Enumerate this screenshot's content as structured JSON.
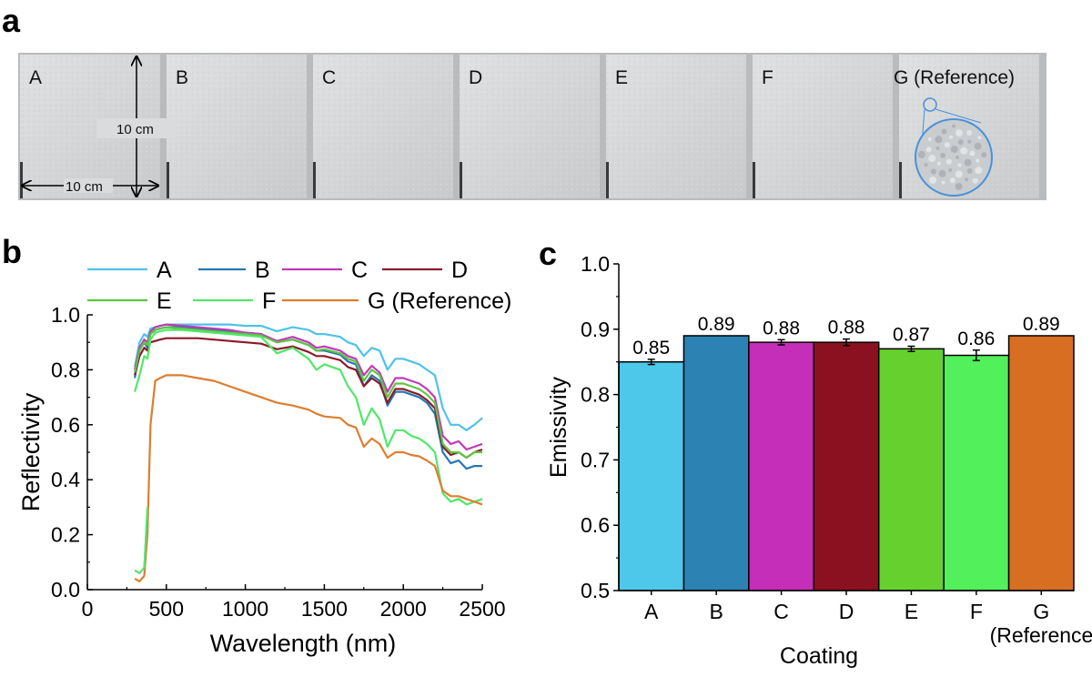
{
  "panels": {
    "a": "a",
    "b": "b",
    "c": "c"
  },
  "samples": {
    "labels": [
      "A",
      "B",
      "C",
      "D",
      "E",
      "F",
      "G (Reference)"
    ],
    "dim_vertical": "10 cm",
    "dim_horizontal": "10 cm",
    "colors": {
      "tile": "#d6d8d9",
      "tile_dark": "#c8cacb",
      "zoom_circle": "#4a90d9"
    }
  },
  "chart_data": [
    {
      "type": "line",
      "xlabel": "Wavelength (nm)",
      "ylabel": "Reflectivity",
      "xlim": [
        0,
        2500
      ],
      "ylim": [
        0.0,
        1.0
      ],
      "xticks": [
        0,
        500,
        1000,
        1500,
        2000,
        2500
      ],
      "yticks": [
        0.0,
        0.2,
        0.4,
        0.6,
        0.8,
        1.0
      ],
      "legend_position": "top",
      "series": [
        {
          "name": "A",
          "color": "#4dc3e8",
          "x": [
            300,
            330,
            360,
            380,
            400,
            430,
            460,
            500,
            600,
            700,
            800,
            900,
            1000,
            1100,
            1200,
            1300,
            1400,
            1450,
            1500,
            1600,
            1650,
            1700,
            1750,
            1800,
            1850,
            1900,
            1950,
            2000,
            2050,
            2100,
            2150,
            2200,
            2250,
            2300,
            2350,
            2400,
            2450,
            2500
          ],
          "y": [
            0.81,
            0.9,
            0.93,
            0.92,
            0.95,
            0.955,
            0.96,
            0.965,
            0.965,
            0.965,
            0.965,
            0.965,
            0.96,
            0.96,
            0.94,
            0.955,
            0.945,
            0.93,
            0.93,
            0.92,
            0.9,
            0.89,
            0.85,
            0.88,
            0.87,
            0.8,
            0.84,
            0.84,
            0.83,
            0.82,
            0.8,
            0.78,
            0.66,
            0.6,
            0.6,
            0.58,
            0.6,
            0.625
          ]
        },
        {
          "name": "B",
          "color": "#2677b3",
          "x": [
            300,
            330,
            360,
            380,
            400,
            430,
            460,
            500,
            600,
            700,
            800,
            900,
            1000,
            1100,
            1200,
            1300,
            1400,
            1450,
            1500,
            1600,
            1650,
            1700,
            1750,
            1800,
            1850,
            1900,
            1950,
            2000,
            2050,
            2100,
            2150,
            2200,
            2250,
            2300,
            2350,
            2400,
            2450,
            2500
          ],
          "y": [
            0.77,
            0.87,
            0.9,
            0.88,
            0.93,
            0.945,
            0.95,
            0.955,
            0.955,
            0.95,
            0.945,
            0.94,
            0.935,
            0.93,
            0.9,
            0.91,
            0.89,
            0.87,
            0.87,
            0.855,
            0.83,
            0.82,
            0.74,
            0.78,
            0.76,
            0.67,
            0.72,
            0.72,
            0.71,
            0.7,
            0.68,
            0.64,
            0.5,
            0.46,
            0.47,
            0.44,
            0.45,
            0.45
          ]
        },
        {
          "name": "C",
          "color": "#c039b8",
          "x": [
            300,
            330,
            360,
            380,
            400,
            430,
            460,
            500,
            600,
            700,
            800,
            900,
            1000,
            1100,
            1200,
            1300,
            1400,
            1450,
            1500,
            1600,
            1650,
            1700,
            1750,
            1800,
            1850,
            1900,
            1950,
            2000,
            2050,
            2100,
            2150,
            2200,
            2250,
            2300,
            2350,
            2400,
            2450,
            2500
          ],
          "y": [
            0.8,
            0.88,
            0.91,
            0.9,
            0.94,
            0.955,
            0.96,
            0.965,
            0.96,
            0.955,
            0.95,
            0.945,
            0.935,
            0.93,
            0.905,
            0.92,
            0.9,
            0.88,
            0.885,
            0.87,
            0.85,
            0.84,
            0.78,
            0.815,
            0.79,
            0.72,
            0.77,
            0.77,
            0.76,
            0.75,
            0.73,
            0.7,
            0.56,
            0.53,
            0.54,
            0.51,
            0.52,
            0.53
          ]
        },
        {
          "name": "D",
          "color": "#8b1a2b",
          "x": [
            300,
            330,
            360,
            380,
            400,
            430,
            460,
            500,
            600,
            700,
            800,
            900,
            1000,
            1100,
            1200,
            1300,
            1400,
            1450,
            1500,
            1600,
            1650,
            1700,
            1750,
            1800,
            1850,
            1900,
            1950,
            2000,
            2050,
            2100,
            2150,
            2200,
            2250,
            2300,
            2350,
            2400,
            2450,
            2500
          ],
          "y": [
            0.78,
            0.85,
            0.88,
            0.87,
            0.9,
            0.905,
            0.91,
            0.915,
            0.915,
            0.915,
            0.91,
            0.905,
            0.9,
            0.895,
            0.875,
            0.885,
            0.865,
            0.85,
            0.85,
            0.835,
            0.81,
            0.8,
            0.74,
            0.77,
            0.75,
            0.68,
            0.73,
            0.73,
            0.72,
            0.71,
            0.69,
            0.66,
            0.52,
            0.49,
            0.5,
            0.48,
            0.5,
            0.51
          ]
        },
        {
          "name": "E",
          "color": "#5cc640",
          "x": [
            300,
            330,
            360,
            380,
            400,
            430,
            460,
            500,
            600,
            700,
            800,
            900,
            1000,
            1100,
            1200,
            1300,
            1400,
            1450,
            1500,
            1600,
            1650,
            1700,
            1750,
            1800,
            1850,
            1900,
            1950,
            2000,
            2050,
            2100,
            2150,
            2200,
            2250,
            2300,
            2350,
            2400,
            2450,
            2500
          ],
          "y": [
            0.79,
            0.87,
            0.9,
            0.89,
            0.93,
            0.945,
            0.95,
            0.955,
            0.95,
            0.945,
            0.94,
            0.935,
            0.93,
            0.925,
            0.9,
            0.91,
            0.89,
            0.87,
            0.875,
            0.86,
            0.84,
            0.83,
            0.76,
            0.8,
            0.78,
            0.7,
            0.75,
            0.75,
            0.74,
            0.73,
            0.71,
            0.68,
            0.53,
            0.5,
            0.5,
            0.48,
            0.5,
            0.5
          ]
        },
        {
          "name": "F",
          "color": "#50e868",
          "x": [
            300,
            330,
            360,
            380,
            400,
            430,
            460,
            500,
            600,
            700,
            800,
            900,
            1000,
            1100,
            1200,
            1300,
            1400,
            1450,
            1500,
            1600,
            1650,
            1700,
            1750,
            1800,
            1850,
            1900,
            1950,
            2000,
            2050,
            2100,
            2150,
            2200,
            2250,
            2300,
            2350,
            2400,
            2450,
            2500
          ],
          "y": [
            0.72,
            0.78,
            0.85,
            0.84,
            0.91,
            0.935,
            0.94,
            0.945,
            0.945,
            0.94,
            0.935,
            0.93,
            0.925,
            0.92,
            0.86,
            0.88,
            0.84,
            0.8,
            0.82,
            0.8,
            0.74,
            0.7,
            0.6,
            0.66,
            0.62,
            0.52,
            0.58,
            0.58,
            0.56,
            0.55,
            0.53,
            0.5,
            0.35,
            0.32,
            0.33,
            0.31,
            0.32,
            0.33
          ]
        },
        {
          "name": "G (Reference)",
          "color": "#de7d2e",
          "x": [
            300,
            330,
            360,
            380,
            400,
            430,
            460,
            500,
            600,
            700,
            800,
            900,
            1000,
            1100,
            1200,
            1300,
            1400,
            1450,
            1500,
            1600,
            1650,
            1700,
            1750,
            1800,
            1850,
            1900,
            1950,
            2000,
            2050,
            2100,
            2150,
            2200,
            2250,
            2300,
            2350,
            2400,
            2450,
            2500
          ],
          "y": [
            0.04,
            0.03,
            0.05,
            0.2,
            0.6,
            0.76,
            0.77,
            0.78,
            0.78,
            0.77,
            0.76,
            0.74,
            0.72,
            0.7,
            0.68,
            0.67,
            0.655,
            0.64,
            0.63,
            0.625,
            0.6,
            0.59,
            0.52,
            0.55,
            0.53,
            0.48,
            0.5,
            0.5,
            0.49,
            0.485,
            0.47,
            0.45,
            0.36,
            0.34,
            0.34,
            0.33,
            0.32,
            0.31
          ]
        }
      ],
      "uv_tails": {
        "A": {
          "x": [
            300,
            330,
            360,
            380
          ],
          "y": [
            0.07,
            0.06,
            0.08,
            0.3
          ]
        },
        "F": {
          "x": [
            300,
            330,
            360,
            380
          ],
          "y": [
            0.07,
            0.06,
            0.08,
            0.3
          ]
        }
      }
    },
    {
      "type": "bar",
      "xlabel": "Coating",
      "ylabel": "Emissivity",
      "ylim": [
        0.5,
        1.0
      ],
      "yticks": [
        0.5,
        0.6,
        0.7,
        0.8,
        0.9,
        1.0
      ],
      "categories": [
        "A",
        "B",
        "C",
        "D",
        "E",
        "F",
        "G\n(Reference)"
      ],
      "category_lines": [
        [
          "A"
        ],
        [
          "B"
        ],
        [
          "C"
        ],
        [
          "D"
        ],
        [
          "E"
        ],
        [
          "F"
        ],
        [
          "G",
          "(Reference)"
        ]
      ],
      "values": [
        0.85,
        0.89,
        0.88,
        0.88,
        0.87,
        0.86,
        0.89
      ],
      "value_labels": [
        "0.85",
        "0.89",
        "0.88",
        "0.88",
        "0.87",
        "0.86",
        "0.89"
      ],
      "errors": [
        0.004,
        0,
        0.004,
        0.005,
        0.004,
        0.008,
        0
      ],
      "colors": [
        "#4dc8ea",
        "#2b82b3",
        "#c42eb8",
        "#8b1020",
        "#66d12e",
        "#52f05a",
        "#d86e22"
      ]
    }
  ]
}
